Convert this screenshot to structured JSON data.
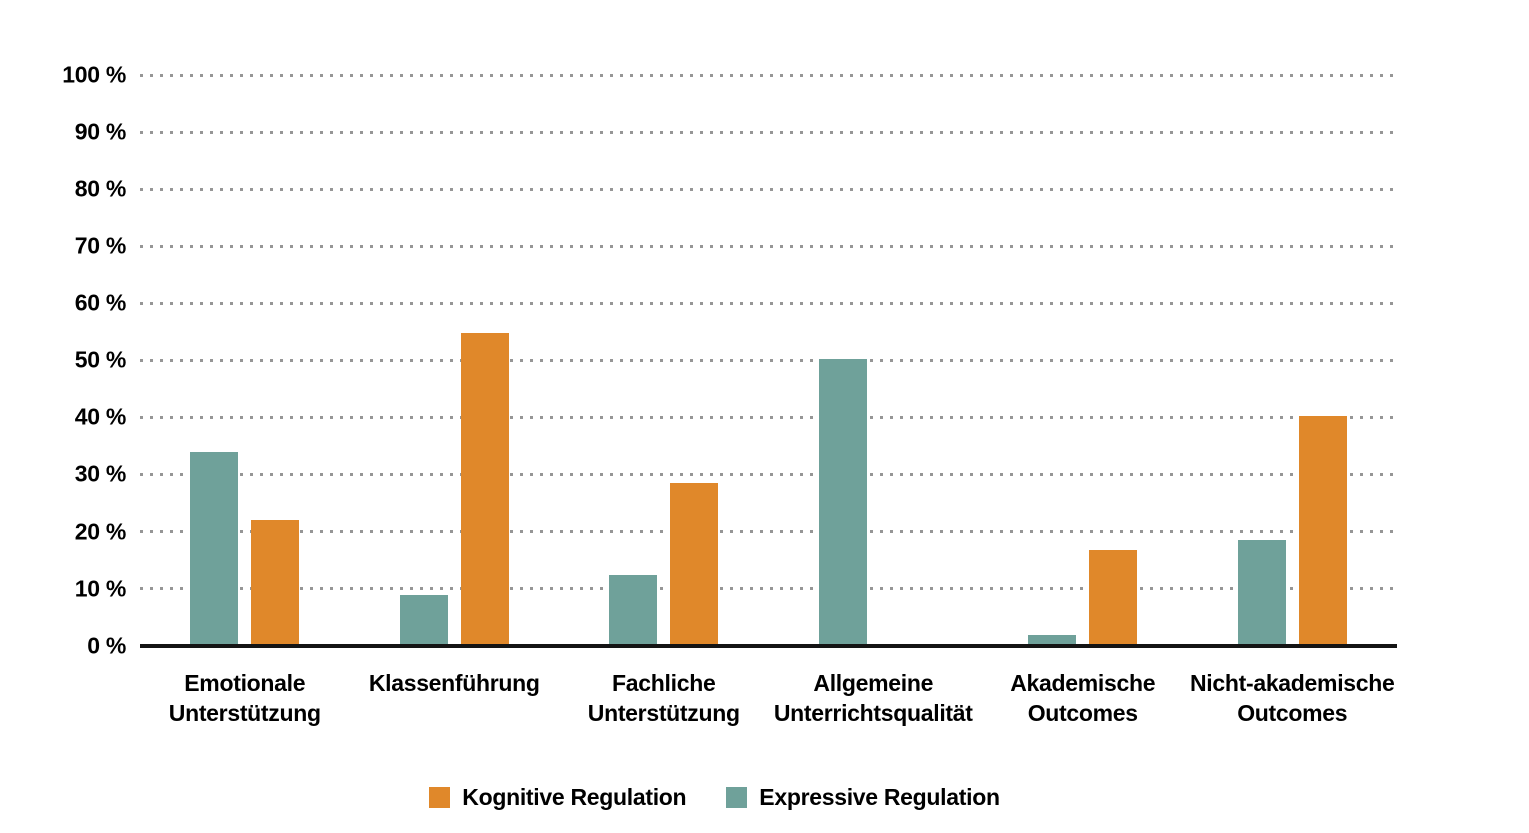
{
  "chart_data": {
    "type": "bar",
    "title": "",
    "xlabel": "",
    "ylabel": "",
    "ylim": [
      0,
      100
    ],
    "grid": "horizontal-dotted",
    "legend_position": "bottom-center",
    "categories": [
      "Emotionale Unterstützung",
      "Klassenführung",
      "Fachliche Unterstützung",
      "Allgemeine Unterrichtsqualität",
      "Akademische Outcomes",
      "Nicht-akademische Outcomes"
    ],
    "category_lines": [
      [
        "Emotionale",
        "Unterstützung"
      ],
      [
        "Klassenführung"
      ],
      [
        "Fachliche",
        "Unterstützung"
      ],
      [
        "Allgemeine",
        "Unterrichtsqualität"
      ],
      [
        "Akademische",
        "Outcomes"
      ],
      [
        "Nicht-akademische",
        "Outcomes"
      ]
    ],
    "yticks": [
      "100 %",
      "90 %",
      "80 %",
      "70 %",
      "60 %",
      "50 %",
      "40 %",
      "30 %",
      "20 %",
      "10 %",
      "0 %"
    ],
    "ytick_values": [
      100,
      90,
      80,
      70,
      60,
      50,
      40,
      30,
      20,
      10,
      0
    ],
    "series": [
      {
        "name": "Expressive Regulation",
        "color": "#6FA19A",
        "values": [
          34,
          9,
          12.5,
          50.3,
          1.9,
          18.5
        ]
      },
      {
        "name": "Kognitive Regulation",
        "color": "#E0882A",
        "values": [
          22,
          54.8,
          28.5,
          0,
          16.8,
          40.3
        ]
      }
    ],
    "legend": [
      {
        "label": "Kognitive Regulation",
        "color": "#E0882A"
      },
      {
        "label": "Expressive Regulation",
        "color": "#6FA19A"
      }
    ]
  },
  "colors": {
    "background": "#ffffff",
    "axis_line": "#141414",
    "gridline": "#969696",
    "text": "#000000",
    "kognitive_orange": "#E0882A",
    "expressive_teal": "#6FA19A"
  }
}
